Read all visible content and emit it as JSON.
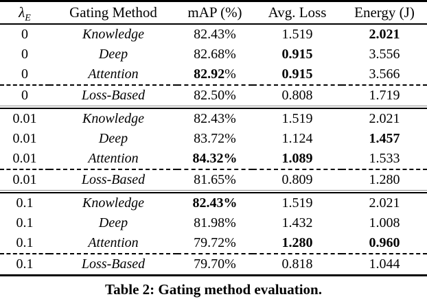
{
  "header": {
    "lambda_symbol": "λ",
    "lambda_subscript": "E",
    "columns": [
      "Gating Method",
      "mAP (%)",
      "Avg. Loss",
      "Energy (J)"
    ]
  },
  "rows": [
    {
      "lambda": "0",
      "method": "Knowledge",
      "map": "82.43",
      "map_pct": "%",
      "map_bold": false,
      "map_pct_bold": false,
      "loss": "1.519",
      "loss_bold": false,
      "energy": "2.021",
      "energy_bold": true,
      "separator_above": "none"
    },
    {
      "lambda": "0",
      "method": "Deep",
      "map": "82.68",
      "map_pct": "%",
      "map_bold": false,
      "map_pct_bold": false,
      "loss": "0.915",
      "loss_bold": true,
      "energy": "3.556",
      "energy_bold": false,
      "separator_above": "none"
    },
    {
      "lambda": "0",
      "method": "Attention",
      "map": "82.92",
      "map_pct": "%",
      "map_bold": true,
      "map_pct_bold": false,
      "loss": "0.915",
      "loss_bold": true,
      "energy": "3.566",
      "energy_bold": false,
      "separator_above": "none"
    },
    {
      "lambda": "0",
      "method": "Loss-Based",
      "map": "82.50",
      "map_pct": "%",
      "map_bold": false,
      "map_pct_bold": false,
      "loss": "0.808",
      "loss_bold": false,
      "energy": "1.719",
      "energy_bold": false,
      "separator_above": "dashed"
    },
    {
      "lambda": "0.01",
      "method": "Knowledge",
      "map": "82.43",
      "map_pct": "%",
      "map_bold": false,
      "map_pct_bold": false,
      "loss": "1.519",
      "loss_bold": false,
      "energy": "2.021",
      "energy_bold": false,
      "separator_above": "double"
    },
    {
      "lambda": "0.01",
      "method": "Deep",
      "map": "83.72",
      "map_pct": "%",
      "map_bold": false,
      "map_pct_bold": false,
      "loss": "1.124",
      "loss_bold": false,
      "energy": "1.457",
      "energy_bold": true,
      "separator_above": "none"
    },
    {
      "lambda": "0.01",
      "method": "Attention",
      "map": "84.32",
      "map_pct": "%",
      "map_bold": true,
      "map_pct_bold": true,
      "loss": "1.089",
      "loss_bold": true,
      "energy": "1.533",
      "energy_bold": false,
      "separator_above": "none"
    },
    {
      "lambda": "0.01",
      "method": "Loss-Based",
      "map": "81.65",
      "map_pct": "%",
      "map_bold": false,
      "map_pct_bold": false,
      "loss": "0.809",
      "loss_bold": false,
      "energy": "1.280",
      "energy_bold": false,
      "separator_above": "dashed"
    },
    {
      "lambda": "0.1",
      "method": "Knowledge",
      "map": "82.43",
      "map_pct": "%",
      "map_bold": true,
      "map_pct_bold": true,
      "loss": "1.519",
      "loss_bold": false,
      "energy": "2.021",
      "energy_bold": false,
      "separator_above": "double"
    },
    {
      "lambda": "0.1",
      "method": "Deep",
      "map": "81.98",
      "map_pct": "%",
      "map_bold": false,
      "map_pct_bold": false,
      "loss": "1.432",
      "loss_bold": false,
      "energy": "1.008",
      "energy_bold": false,
      "separator_above": "none"
    },
    {
      "lambda": "0.1",
      "method": "Attention",
      "map": "79.72",
      "map_pct": "%",
      "map_bold": false,
      "map_pct_bold": false,
      "loss": "1.280",
      "loss_bold": true,
      "energy": "0.960",
      "energy_bold": true,
      "separator_above": "none"
    },
    {
      "lambda": "0.1",
      "method": "Loss-Based",
      "map": "79.70",
      "map_pct": "%",
      "map_bold": false,
      "map_pct_bold": false,
      "loss": "0.818",
      "loss_bold": false,
      "energy": "1.044",
      "energy_bold": false,
      "separator_above": "dashed"
    }
  ],
  "caption": "Table 2: Gating method evaluation.",
  "colors": {
    "text": "#000000",
    "rule": "#000000",
    "rule_light": "#8f8f8f",
    "background": "#ffffff"
  }
}
